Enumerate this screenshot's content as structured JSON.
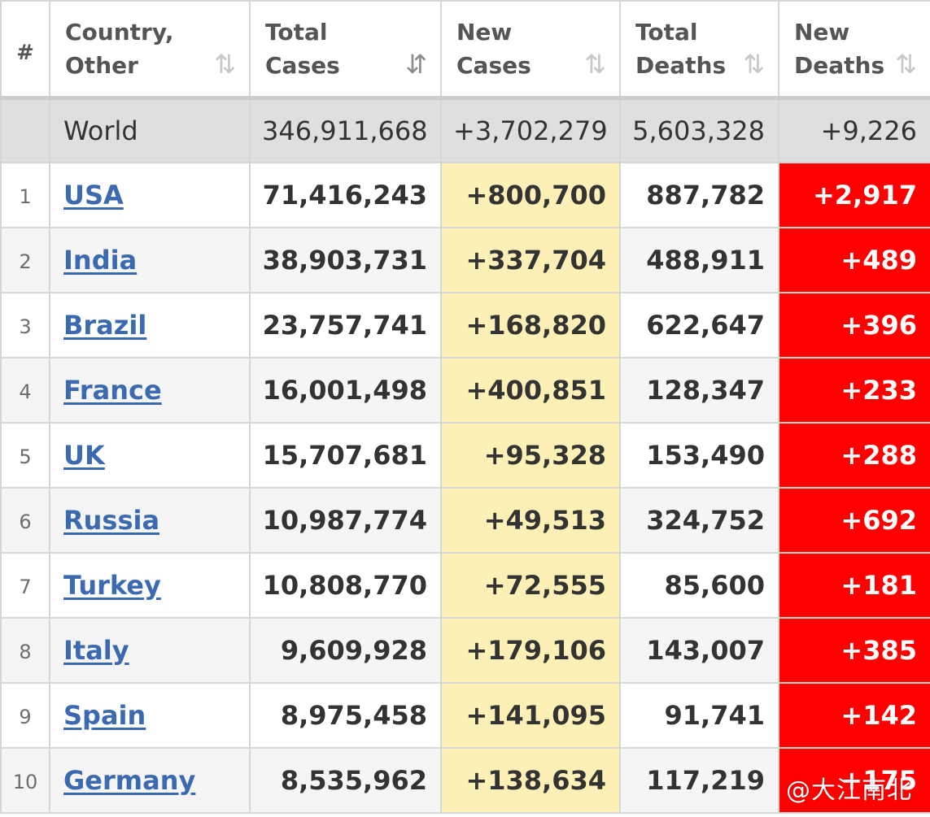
{
  "headers": {
    "rank": "#",
    "country": [
      "Country,",
      "Other"
    ],
    "total_cases": [
      "Total",
      "Cases"
    ],
    "new_cases": [
      "New",
      "Cases"
    ],
    "total_deaths": [
      "Total",
      "Deaths"
    ],
    "new_deaths": [
      "New",
      "Deaths"
    ]
  },
  "sort_icons": {
    "country": "⇅",
    "total_cases": "⇵",
    "new_cases": "⇅",
    "total_deaths": "⇅",
    "new_deaths": "⇅"
  },
  "world": {
    "label": "World",
    "total_cases": "346,911,668",
    "new_cases": "+3,702,279",
    "total_deaths": "5,603,328",
    "new_deaths": "+9,226"
  },
  "rows": [
    {
      "rank": "1",
      "country": "USA",
      "total_cases": "71,416,243",
      "new_cases": "+800,700",
      "total_deaths": "887,782",
      "new_deaths": "+2,917"
    },
    {
      "rank": "2",
      "country": "India",
      "total_cases": "38,903,731",
      "new_cases": "+337,704",
      "total_deaths": "488,911",
      "new_deaths": "+489"
    },
    {
      "rank": "3",
      "country": "Brazil",
      "total_cases": "23,757,741",
      "new_cases": "+168,820",
      "total_deaths": "622,647",
      "new_deaths": "+396"
    },
    {
      "rank": "4",
      "country": "France",
      "total_cases": "16,001,498",
      "new_cases": "+400,851",
      "total_deaths": "128,347",
      "new_deaths": "+233"
    },
    {
      "rank": "5",
      "country": "UK",
      "total_cases": "15,707,681",
      "new_cases": "+95,328",
      "total_deaths": "153,490",
      "new_deaths": "+288"
    },
    {
      "rank": "6",
      "country": "Russia",
      "total_cases": "10,987,774",
      "new_cases": "+49,513",
      "total_deaths": "324,752",
      "new_deaths": "+692"
    },
    {
      "rank": "7",
      "country": "Turkey",
      "total_cases": "10,808,770",
      "new_cases": "+72,555",
      "total_deaths": "85,600",
      "new_deaths": "+181"
    },
    {
      "rank": "8",
      "country": "Italy",
      "total_cases": "9,609,928",
      "new_cases": "+179,106",
      "total_deaths": "143,007",
      "new_deaths": "+385"
    },
    {
      "rank": "9",
      "country": "Spain",
      "total_cases": "8,975,458",
      "new_cases": "+141,095",
      "total_deaths": "91,741",
      "new_deaths": "+142"
    },
    {
      "rank": "10",
      "country": "Germany",
      "total_cases": "8,535,962",
      "new_cases": "+138,634",
      "total_deaths": "117,219",
      "new_deaths": "+175"
    }
  ],
  "watermark": "@大江南北",
  "colors": {
    "new_cases_bg": "#fdf0b6",
    "new_deaths_bg": "#ff0000",
    "world_row_bg": "#dfdfdf",
    "country_link": "#3b6ab0"
  }
}
